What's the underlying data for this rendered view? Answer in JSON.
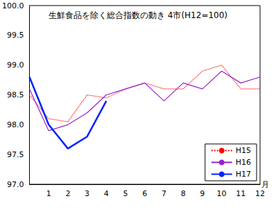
{
  "chart_data": {
    "type": "line",
    "title": "生鮮食品を除く総合指数の動き 4市(H12=100)",
    "x_label": "月",
    "categories": [
      null,
      "1",
      "2",
      "3",
      "4",
      "5",
      "6",
      "7",
      "8",
      "9",
      "10",
      "11",
      "12"
    ],
    "series": [
      {
        "name": "H15",
        "color": "#ff0000",
        "line_style": "dotted",
        "values": [
          98.5,
          98.1,
          98.05,
          98.5,
          98.45,
          98.6,
          98.7,
          98.6,
          98.6,
          98.9,
          99.0,
          98.6,
          98.6
        ]
      },
      {
        "name": "H16",
        "color": "#9922cc",
        "line_style": "solid",
        "values": [
          98.6,
          97.9,
          98.0,
          98.2,
          98.5,
          98.6,
          98.7,
          98.4,
          98.7,
          98.6,
          98.9,
          98.7,
          98.8
        ]
      },
      {
        "name": "H17",
        "color": "#0022ff",
        "line_style": "solid",
        "values": [
          98.8,
          98.0,
          97.6,
          97.8,
          98.4,
          null,
          null,
          null,
          null,
          null,
          null,
          null,
          null
        ]
      }
    ],
    "ylim": [
      97.0,
      100.0
    ],
    "yticks": [
      {
        "value": 97.0,
        "label": "97.0"
      },
      97.5,
      {
        "value": 98.0,
        "label": "98.0"
      },
      98.5,
      {
        "value": 99.0,
        "label": "99.0"
      },
      99.5,
      {
        "value": 100.0,
        "label": "100.0"
      }
    ],
    "grid": false,
    "legend": "lower right"
  }
}
